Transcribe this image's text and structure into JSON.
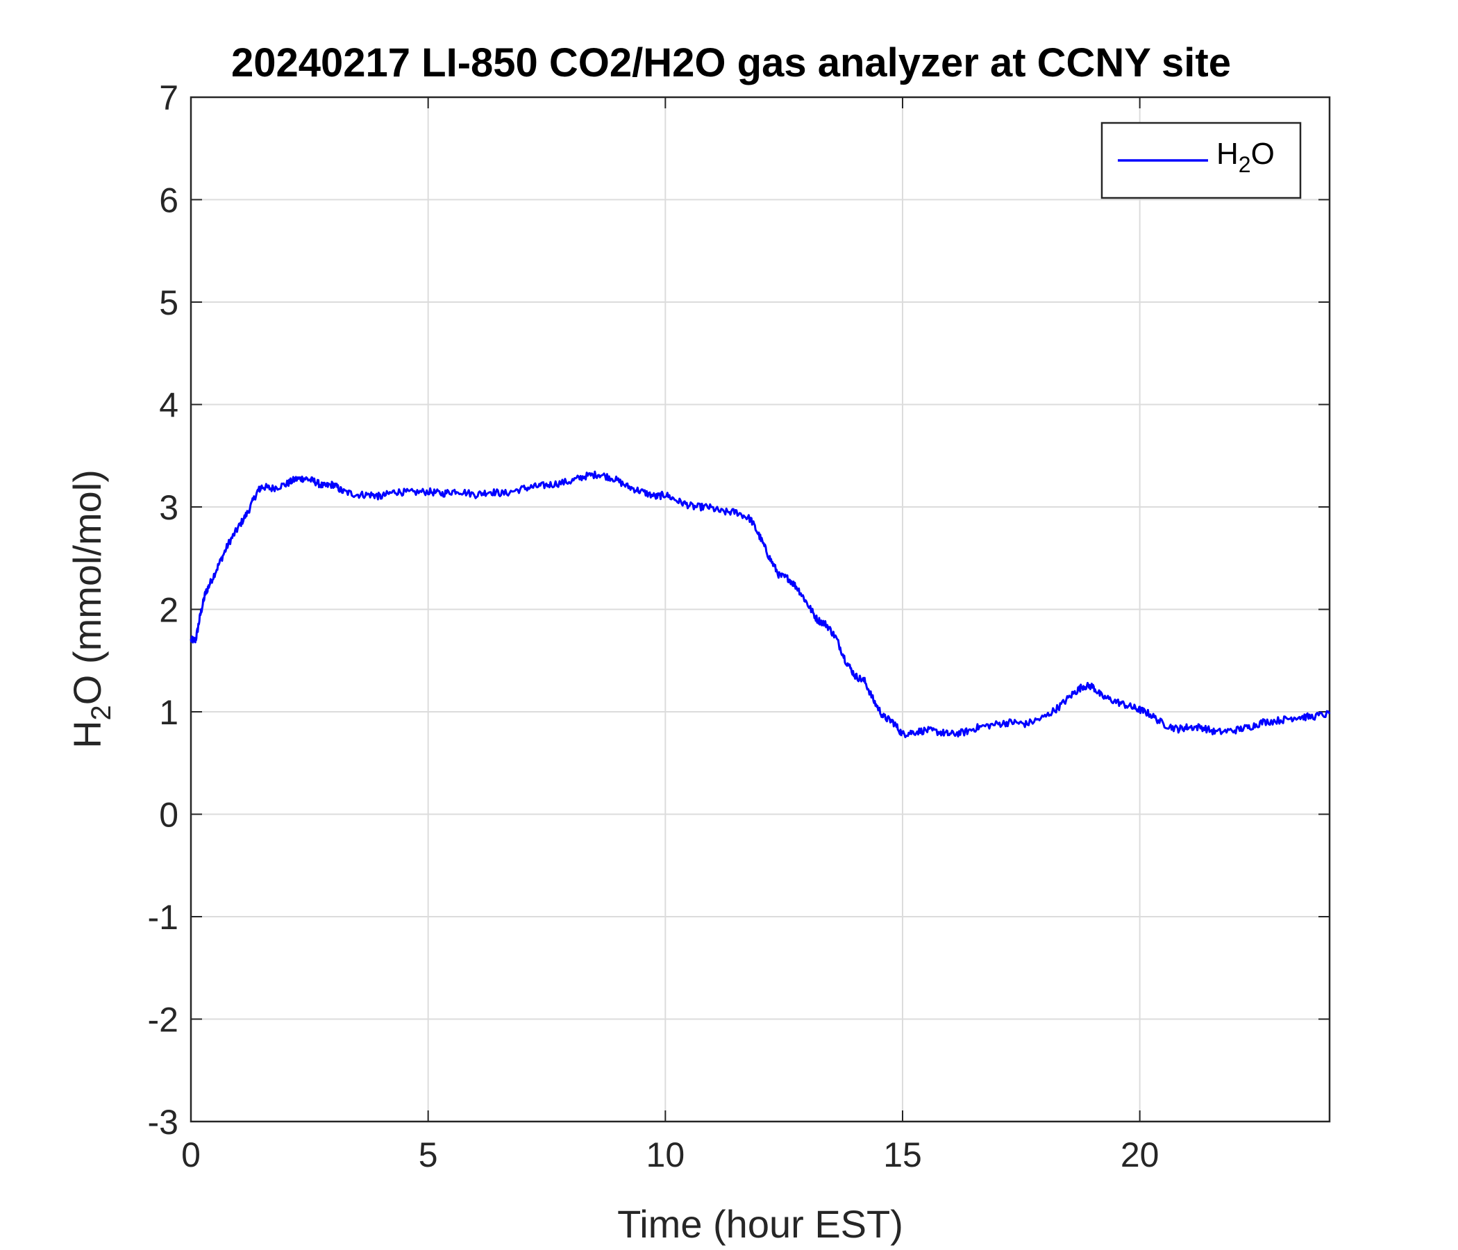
{
  "chart_data": {
    "type": "line",
    "title": "20240217 LI-850 CO2/H2O gas analyzer at CCNY site",
    "xlabel": "Time (hour EST)",
    "ylabel": {
      "base": "H",
      "sub": "2",
      "rest": "O (mmol/mol)"
    },
    "xlim": [
      0,
      24
    ],
    "ylim": [
      -3,
      7
    ],
    "xticks": [
      0,
      5,
      10,
      15,
      20
    ],
    "yticks": [
      -3,
      -2,
      -1,
      0,
      1,
      2,
      3,
      4,
      5,
      6,
      7
    ],
    "grid": true,
    "legend": {
      "position": "top-right",
      "entries": [
        {
          "base": "H",
          "sub": "2",
          "rest": "O"
        }
      ]
    },
    "series": [
      {
        "name": "H2O",
        "color": "#0000ff",
        "x": [
          0,
          0.1,
          0.2,
          0.3,
          0.4,
          0.6,
          0.8,
          1.0,
          1.2,
          1.4,
          1.5,
          1.7,
          2.0,
          2.2,
          2.4,
          2.6,
          2.8,
          3.0,
          3.2,
          3.5,
          3.8,
          4.0,
          4.3,
          4.6,
          5.0,
          5.3,
          5.6,
          6.0,
          6.3,
          6.6,
          7.0,
          7.3,
          7.6,
          8.0,
          8.3,
          8.6,
          8.9,
          9.2,
          9.5,
          9.8,
          10.0,
          10.3,
          10.6,
          10.9,
          11.2,
          11.5,
          11.8,
          12.0,
          12.2,
          12.4,
          12.6,
          12.8,
          13.0,
          13.2,
          13.4,
          13.6,
          13.8,
          14.0,
          14.2,
          14.4,
          14.6,
          14.8,
          15.0,
          15.2,
          15.5,
          15.8,
          16.0,
          16.3,
          16.6,
          17.0,
          17.3,
          17.6,
          18.0,
          18.3,
          18.6,
          18.8,
          19.0,
          19.2,
          19.5,
          19.8,
          20.0,
          20.2,
          20.5,
          20.8,
          21.0,
          21.3,
          21.6,
          22.0,
          22.3,
          22.6,
          23.0,
          23.3,
          23.6,
          24.0
        ],
        "y": [
          1.7,
          1.7,
          1.95,
          2.15,
          2.25,
          2.45,
          2.65,
          2.8,
          2.95,
          3.15,
          3.2,
          3.18,
          3.22,
          3.27,
          3.28,
          3.25,
          3.2,
          3.22,
          3.15,
          3.12,
          3.12,
          3.1,
          3.15,
          3.14,
          3.15,
          3.13,
          3.16,
          3.12,
          3.15,
          3.13,
          3.18,
          3.2,
          3.22,
          3.25,
          3.3,
          3.32,
          3.28,
          3.2,
          3.15,
          3.1,
          3.12,
          3.05,
          3.0,
          3.0,
          2.95,
          2.95,
          2.88,
          2.7,
          2.5,
          2.33,
          2.3,
          2.2,
          2.05,
          1.9,
          1.85,
          1.72,
          1.5,
          1.35,
          1.3,
          1.1,
          0.95,
          0.9,
          0.78,
          0.8,
          0.82,
          0.8,
          0.78,
          0.8,
          0.85,
          0.88,
          0.9,
          0.88,
          0.95,
          1.05,
          1.18,
          1.25,
          1.25,
          1.15,
          1.1,
          1.05,
          1.02,
          0.98,
          0.88,
          0.83,
          0.85,
          0.85,
          0.8,
          0.82,
          0.85,
          0.9,
          0.92,
          0.95,
          0.95,
          0.98
        ]
      }
    ]
  }
}
